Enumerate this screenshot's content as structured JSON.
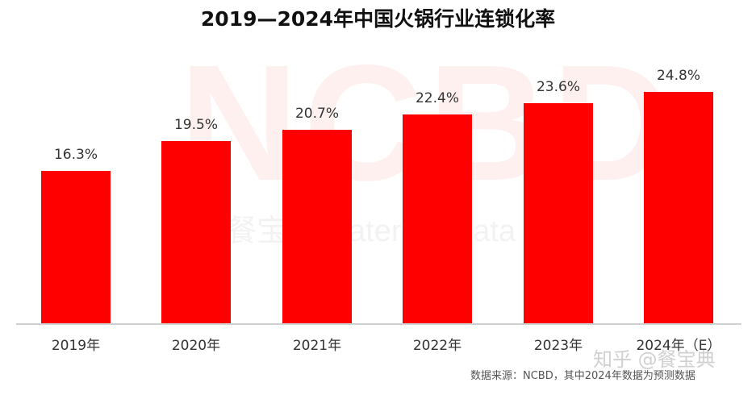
{
  "chart_data": {
    "type": "bar",
    "title": "2019—2024年中国火锅行业连锁化率",
    "categories": [
      "2019年",
      "2020年",
      "2021年",
      "2022年",
      "2023年",
      "2024年（E）"
    ],
    "values": [
      16.3,
      19.5,
      20.7,
      22.4,
      23.6,
      24.8
    ],
    "value_labels": [
      "16.3%",
      "19.5%",
      "20.7%",
      "22.4%",
      "23.6%",
      "24.8%"
    ],
    "xlabel": "",
    "ylabel": "",
    "ylim": [
      0,
      26
    ],
    "grid": false,
    "legend": null,
    "bar_color": "#ff0000",
    "source_note": "数据来源：NCBD，其中2024年数据为预测数据"
  },
  "watermark": {
    "logo": "NCBD",
    "subtitle": "餐宝典    Catering Data",
    "platform": "知乎 @餐宝典"
  }
}
